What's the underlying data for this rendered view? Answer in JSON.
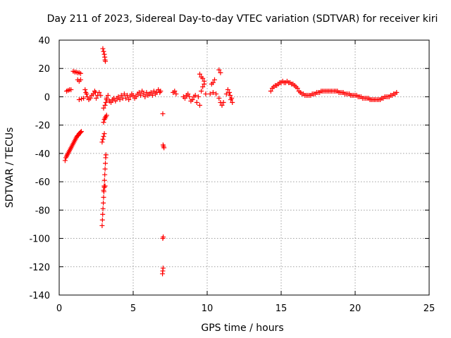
{
  "chart_data": {
    "type": "scatter",
    "title": "Day 211 of 2023, Sidereal Day-to-day VTEC variation (SDTVAR) for receiver kiri",
    "xlabel": "GPS time / hours",
    "ylabel": "SDTVAR / TECUs",
    "xlim": [
      0,
      25
    ],
    "ylim": [
      -140,
      40
    ],
    "xticks": [
      0,
      5,
      10,
      15,
      20,
      25
    ],
    "yticks": [
      40,
      20,
      0,
      -20,
      -40,
      -60,
      -80,
      -100,
      -120,
      -140
    ],
    "grid": true,
    "marker": "+",
    "color": "#ff0000",
    "series": [
      {
        "name": "SDTVAR",
        "points": [
          [
            0.4,
            -45
          ],
          [
            0.45,
            -43
          ],
          [
            0.5,
            -42
          ],
          [
            0.55,
            -41
          ],
          [
            0.6,
            -40
          ],
          [
            0.65,
            -39
          ],
          [
            0.7,
            -38
          ],
          [
            0.75,
            -37
          ],
          [
            0.8,
            -36
          ],
          [
            0.85,
            -35
          ],
          [
            0.9,
            -34
          ],
          [
            0.95,
            -33
          ],
          [
            1.0,
            -32
          ],
          [
            1.05,
            -31
          ],
          [
            1.1,
            -30
          ],
          [
            1.15,
            -29
          ],
          [
            1.2,
            -28
          ],
          [
            1.25,
            -27.5
          ],
          [
            1.3,
            -27
          ],
          [
            1.35,
            -26
          ],
          [
            1.4,
            -25.5
          ],
          [
            1.45,
            -25
          ],
          [
            1.5,
            -24.5
          ],
          [
            0.5,
            4
          ],
          [
            0.6,
            4.5
          ],
          [
            0.7,
            5
          ],
          [
            0.8,
            5
          ],
          [
            0.95,
            18
          ],
          [
            1.05,
            17.5
          ],
          [
            1.15,
            17.5
          ],
          [
            1.25,
            17
          ],
          [
            1.35,
            17
          ],
          [
            1.45,
            16.5
          ],
          [
            1.25,
            12
          ],
          [
            1.35,
            11
          ],
          [
            1.45,
            12
          ],
          [
            1.35,
            -2
          ],
          [
            1.5,
            -1.5
          ],
          [
            1.65,
            -1
          ],
          [
            1.75,
            5
          ],
          [
            1.8,
            3
          ],
          [
            1.85,
            2
          ],
          [
            1.9,
            0
          ],
          [
            2.0,
            -2
          ],
          [
            2.1,
            -1
          ],
          [
            2.2,
            1
          ],
          [
            2.3,
            2
          ],
          [
            2.4,
            4
          ],
          [
            2.45,
            3
          ],
          [
            2.5,
            -1
          ],
          [
            2.6,
            1
          ],
          [
            2.7,
            3
          ],
          [
            2.8,
            1
          ],
          [
            2.95,
            34
          ],
          [
            3.0,
            32
          ],
          [
            3.05,
            30
          ],
          [
            3.08,
            28
          ],
          [
            3.1,
            26
          ],
          [
            3.12,
            25
          ],
          [
            2.9,
            -91
          ],
          [
            2.92,
            -87
          ],
          [
            2.94,
            -83
          ],
          [
            2.96,
            -79
          ],
          [
            2.98,
            -75
          ],
          [
            3.0,
            -71
          ],
          [
            3.02,
            -67
          ],
          [
            3.04,
            -63
          ],
          [
            3.06,
            -59
          ],
          [
            3.08,
            -55
          ],
          [
            3.1,
            -51
          ],
          [
            3.12,
            -47
          ],
          [
            3.14,
            -43
          ],
          [
            3.16,
            -41
          ],
          [
            3.0,
            -66
          ],
          [
            3.05,
            -64
          ],
          [
            3.1,
            -63
          ],
          [
            2.9,
            -32
          ],
          [
            2.95,
            -30
          ],
          [
            3.0,
            -28
          ],
          [
            3.05,
            -26
          ],
          [
            3.0,
            -18
          ],
          [
            3.05,
            -16
          ],
          [
            3.1,
            -15
          ],
          [
            3.15,
            -14
          ],
          [
            3.2,
            -13
          ],
          [
            3.0,
            -8
          ],
          [
            3.1,
            -6
          ],
          [
            3.15,
            -4
          ],
          [
            3.2,
            -2
          ],
          [
            3.2,
            -1
          ],
          [
            3.3,
            1
          ],
          [
            3.4,
            -3
          ],
          [
            3.5,
            -4
          ],
          [
            3.6,
            -2
          ],
          [
            3.7,
            -1
          ],
          [
            3.8,
            -3
          ],
          [
            3.9,
            -1
          ],
          [
            4.0,
            0
          ],
          [
            4.1,
            -2
          ],
          [
            4.2,
            1
          ],
          [
            4.3,
            -1
          ],
          [
            4.4,
            2
          ],
          [
            4.5,
            -1
          ],
          [
            4.6,
            1
          ],
          [
            4.7,
            -2
          ],
          [
            4.8,
            0
          ],
          [
            4.9,
            2
          ],
          [
            5.0,
            1
          ],
          [
            5.1,
            -1
          ],
          [
            5.2,
            0
          ],
          [
            5.3,
            2
          ],
          [
            5.4,
            3
          ],
          [
            5.5,
            1
          ],
          [
            5.6,
            4
          ],
          [
            5.7,
            2
          ],
          [
            5.8,
            0
          ],
          [
            5.9,
            3
          ],
          [
            6.0,
            1
          ],
          [
            6.1,
            2
          ],
          [
            6.2,
            3
          ],
          [
            6.3,
            1
          ],
          [
            6.4,
            4
          ],
          [
            6.5,
            2
          ],
          [
            6.6,
            3
          ],
          [
            6.7,
            5
          ],
          [
            6.8,
            3
          ],
          [
            6.85,
            4
          ],
          [
            7.0,
            -12
          ],
          [
            7.02,
            -34
          ],
          [
            7.05,
            -35
          ],
          [
            7.08,
            -36
          ],
          [
            7.0,
            -100
          ],
          [
            7.03,
            -99
          ],
          [
            6.98,
            -125
          ],
          [
            7.0,
            -123
          ],
          [
            7.02,
            -121
          ],
          [
            7.7,
            3
          ],
          [
            7.8,
            4
          ],
          [
            7.9,
            2
          ],
          [
            8.4,
            0
          ],
          [
            8.5,
            -1
          ],
          [
            8.6,
            1
          ],
          [
            8.7,
            2
          ],
          [
            8.8,
            0
          ],
          [
            8.9,
            -3
          ],
          [
            9.0,
            -2
          ],
          [
            9.1,
            0
          ],
          [
            9.2,
            1
          ],
          [
            9.3,
            -4
          ],
          [
            9.4,
            0
          ],
          [
            9.5,
            -6
          ],
          [
            9.6,
            4
          ],
          [
            9.7,
            7
          ],
          [
            9.8,
            9
          ],
          [
            9.9,
            2
          ],
          [
            9.5,
            16
          ],
          [
            9.6,
            14
          ],
          [
            9.7,
            13
          ],
          [
            9.8,
            11
          ],
          [
            10.3,
            9
          ],
          [
            10.4,
            10
          ],
          [
            10.5,
            12
          ],
          [
            10.8,
            19
          ],
          [
            10.9,
            17
          ],
          [
            10.2,
            2
          ],
          [
            10.4,
            3
          ],
          [
            10.6,
            2
          ],
          [
            10.8,
            -1
          ],
          [
            10.9,
            -4
          ],
          [
            11.0,
            -6
          ],
          [
            11.1,
            -4
          ],
          [
            11.3,
            2
          ],
          [
            11.4,
            5
          ],
          [
            11.5,
            3
          ],
          [
            11.6,
            -2
          ],
          [
            11.7,
            -4
          ],
          [
            11.55,
            1
          ],
          [
            11.65,
            -1
          ],
          [
            14.3,
            4
          ],
          [
            14.4,
            6
          ],
          [
            14.5,
            7
          ],
          [
            14.6,
            8
          ],
          [
            14.7,
            8
          ],
          [
            14.8,
            9
          ],
          [
            14.9,
            10
          ],
          [
            15.0,
            10
          ],
          [
            15.1,
            11
          ],
          [
            15.2,
            10
          ],
          [
            15.3,
            10
          ],
          [
            15.4,
            11
          ],
          [
            15.5,
            10
          ],
          [
            15.6,
            10
          ],
          [
            15.7,
            9
          ],
          [
            15.8,
            9
          ],
          [
            15.9,
            8
          ],
          [
            16.0,
            7
          ],
          [
            16.1,
            6
          ],
          [
            16.2,
            4
          ],
          [
            16.3,
            3
          ],
          [
            16.4,
            2
          ],
          [
            16.5,
            2
          ],
          [
            16.6,
            1
          ],
          [
            16.7,
            1
          ],
          [
            16.8,
            1
          ],
          [
            16.9,
            1
          ],
          [
            17.0,
            1
          ],
          [
            17.1,
            2
          ],
          [
            17.2,
            2
          ],
          [
            17.3,
            2
          ],
          [
            17.4,
            3
          ],
          [
            17.5,
            3
          ],
          [
            17.6,
            3
          ],
          [
            17.7,
            4
          ],
          [
            17.8,
            4
          ],
          [
            17.9,
            4
          ],
          [
            18.0,
            4
          ],
          [
            18.1,
            4
          ],
          [
            18.2,
            4
          ],
          [
            18.3,
            4
          ],
          [
            18.4,
            4
          ],
          [
            18.5,
            4
          ],
          [
            18.6,
            4
          ],
          [
            18.7,
            4
          ],
          [
            18.8,
            4
          ],
          [
            18.9,
            3
          ],
          [
            19.0,
            3
          ],
          [
            19.1,
            3
          ],
          [
            19.2,
            3
          ],
          [
            19.3,
            2
          ],
          [
            19.4,
            2
          ],
          [
            19.5,
            2
          ],
          [
            19.6,
            2
          ],
          [
            19.7,
            1
          ],
          [
            19.8,
            1
          ],
          [
            19.9,
            1
          ],
          [
            20.0,
            1
          ],
          [
            20.1,
            1
          ],
          [
            20.2,
            0
          ],
          [
            20.3,
            0
          ],
          [
            20.4,
            0
          ],
          [
            20.5,
            -1
          ],
          [
            20.6,
            -1
          ],
          [
            20.7,
            -1
          ],
          [
            20.8,
            -1
          ],
          [
            20.9,
            -1
          ],
          [
            21.0,
            -2
          ],
          [
            21.1,
            -2
          ],
          [
            21.2,
            -2
          ],
          [
            21.3,
            -2
          ],
          [
            21.4,
            -2
          ],
          [
            21.5,
            -2
          ],
          [
            21.6,
            -2
          ],
          [
            21.7,
            -2
          ],
          [
            21.8,
            -1
          ],
          [
            21.9,
            -1
          ],
          [
            22.0,
            0
          ],
          [
            22.1,
            0
          ],
          [
            22.2,
            0
          ],
          [
            22.3,
            0
          ],
          [
            22.4,
            1
          ],
          [
            22.5,
            1
          ],
          [
            22.6,
            2
          ],
          [
            22.7,
            2
          ],
          [
            22.8,
            3
          ]
        ]
      }
    ]
  }
}
